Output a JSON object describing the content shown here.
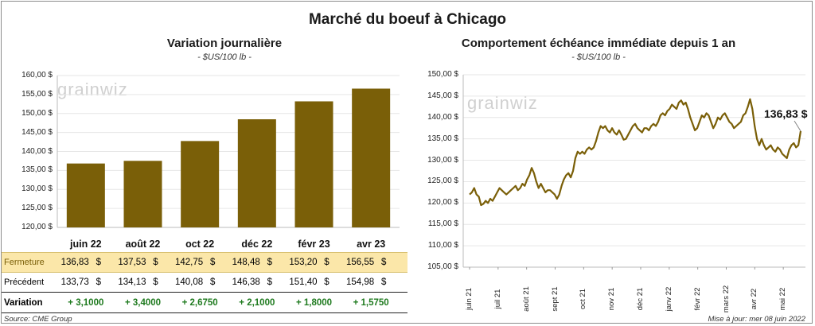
{
  "title": "Marché du boeuf à Chicago",
  "watermark": "grainwiz",
  "colors": {
    "bar": "#7a5f08",
    "line": "#7a5f08",
    "highlight": "#fbe7a9",
    "positive": "#1e7a1e"
  },
  "currency": "$",
  "left": {
    "title": "Variation  journalière",
    "subtitle": "- $US/100 lb -",
    "chart_data": {
      "type": "bar",
      "categories": [
        "juin 22",
        "août 22",
        "oct 22",
        "déc 22",
        "févr 23",
        "avr 23"
      ],
      "values": [
        136.83,
        137.53,
        142.75,
        148.48,
        153.2,
        156.55
      ],
      "ylim": [
        120,
        160
      ],
      "yticks": [
        "120,00 $",
        "125,00 $",
        "130,00 $",
        "135,00 $",
        "140,00 $",
        "145,00 $",
        "150,00 $",
        "155,00 $",
        "160,00 $"
      ]
    },
    "table": {
      "rows": [
        {
          "label": "Fermeture",
          "values": [
            "136,83",
            "137,53",
            "142,75",
            "148,48",
            "153,20",
            "156,55"
          ],
          "currency": true
        },
        {
          "label": "Précédent",
          "values": [
            "133,73",
            "134,13",
            "140,08",
            "146,38",
            "151,40",
            "154,98"
          ],
          "currency": true
        },
        {
          "label": "Variation",
          "values": [
            "+ 3,1000",
            "+ 3,4000",
            "+ 2,6750",
            "+ 2,1000",
            "+ 1,8000",
            "+ 1,5750"
          ],
          "currency": false
        }
      ]
    }
  },
  "right": {
    "title": "Comportement  échéance immédiate depuis 1 an",
    "subtitle": "- $US/100 lb -",
    "annotation": "136,83 $",
    "chart_data": {
      "type": "line",
      "ylim": [
        105,
        150
      ],
      "yticks": [
        "105,00 $",
        "110,00 $",
        "115,00 $",
        "120,00 $",
        "125,00 $",
        "130,00 $",
        "135,00 $",
        "140,00 $",
        "145,00 $",
        "150,00 $"
      ],
      "xticks": [
        "juin 21",
        "juil 21",
        "août 21",
        "sept 21",
        "oct 21",
        "nov 21",
        "déc 21",
        "janv 22",
        "févr 22",
        "mars 22",
        "avr 22",
        "mai 22"
      ],
      "values": [
        122,
        122.5,
        123.5,
        122,
        121.5,
        119.5,
        119.8,
        120.5,
        120,
        121,
        120.5,
        121.5,
        122.5,
        123.5,
        123,
        122.5,
        122,
        122.5,
        123,
        123.5,
        124,
        123,
        123.5,
        124.5,
        124,
        125.5,
        126.5,
        128.2,
        127,
        125,
        123.5,
        124.5,
        123.5,
        122.5,
        123,
        123,
        122.5,
        122,
        121,
        122,
        124,
        125.5,
        126.5,
        127,
        126,
        127.5,
        130.5,
        132,
        131.5,
        132,
        131.5,
        132.5,
        133,
        132.5,
        133,
        134.5,
        136.5,
        138,
        137.5,
        138,
        137,
        136.5,
        137.5,
        136.5,
        136,
        137,
        136,
        134.8,
        135,
        136,
        137,
        138,
        138.5,
        137.5,
        137,
        136.5,
        137.5,
        137.5,
        137,
        138,
        138.5,
        138,
        139,
        140.5,
        141,
        140.5,
        141.5,
        142,
        143,
        142.5,
        142,
        143.5,
        144,
        143,
        143.5,
        142,
        140,
        138.5,
        137,
        137.5,
        139,
        140.5,
        140,
        141,
        140.5,
        139,
        137.5,
        138.5,
        140,
        139.5,
        140.5,
        141,
        140,
        139,
        138.5,
        137.5,
        138,
        138.5,
        139,
        140.5,
        141,
        142.5,
        144.3,
        142,
        138,
        135,
        133.5,
        135,
        133.5,
        132.5,
        133,
        133.5,
        132.5,
        132,
        133,
        132.5,
        131.5,
        131,
        130.5,
        132.5,
        133.5,
        134,
        133,
        133.5,
        136.83
      ]
    }
  },
  "footer": {
    "source": "Source: CME Group",
    "updated": "Mise à jour: mer 08 juin 2022"
  }
}
